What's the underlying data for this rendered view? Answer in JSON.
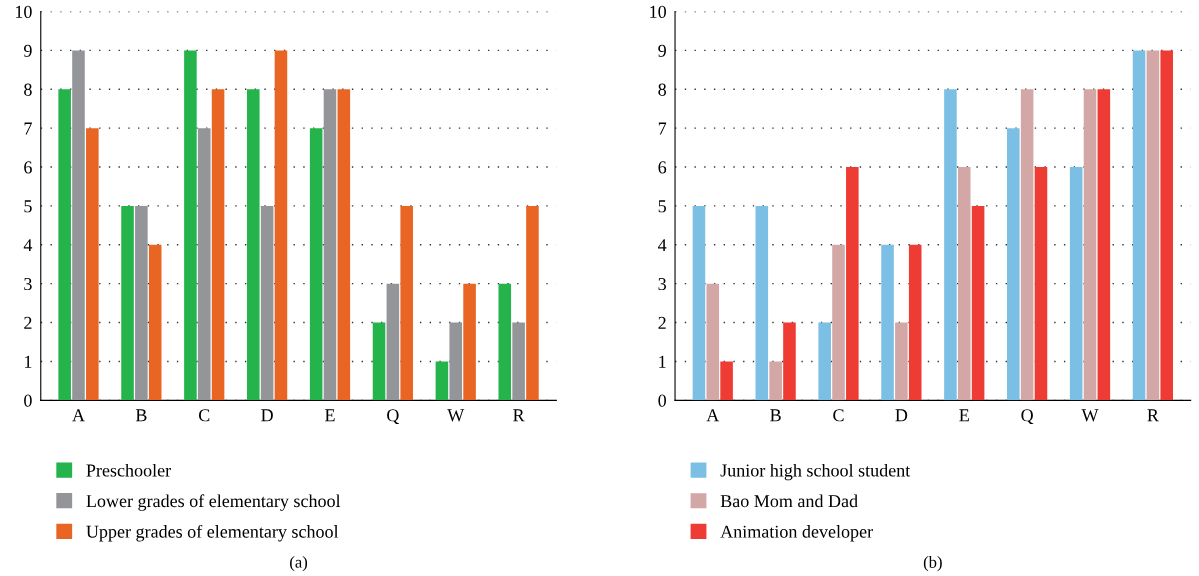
{
  "chart_data": [
    {
      "type": "bar",
      "categories": [
        "A",
        "B",
        "C",
        "D",
        "E",
        "Q",
        "W",
        "R"
      ],
      "ylim": [
        0,
        10
      ],
      "yticks": [
        0,
        1,
        2,
        3,
        4,
        5,
        6,
        7,
        8,
        9,
        10
      ],
      "grid": "y",
      "legend": "bottom left",
      "annotations": [
        "(a)"
      ],
      "series": [
        {
          "name": "Preschooler",
          "color": "#25b34b",
          "values": [
            8,
            5,
            9,
            8,
            7,
            2,
            1,
            3
          ]
        },
        {
          "name": "Lower grades of elementary school",
          "color": "#939598",
          "values": [
            9,
            5,
            7,
            5,
            8,
            3,
            2,
            2
          ]
        },
        {
          "name": "Upper grades of elementary school",
          "color": "#e96524",
          "values": [
            7,
            4,
            8,
            9,
            8,
            5,
            3,
            5
          ]
        }
      ]
    },
    {
      "type": "bar",
      "categories": [
        "A",
        "B",
        "C",
        "D",
        "E",
        "Q",
        "W",
        "R"
      ],
      "ylim": [
        0,
        10
      ],
      "yticks": [
        0,
        1,
        2,
        3,
        4,
        5,
        6,
        7,
        8,
        9,
        10
      ],
      "grid": "y",
      "legend": "bottom left",
      "annotations": [
        "(b)"
      ],
      "series": [
        {
          "name": "Junior high school student",
          "color": "#7bc0e4",
          "values": [
            5,
            5,
            2,
            4,
            8,
            7,
            6,
            9
          ]
        },
        {
          "name": "Bao Mom and Dad",
          "color": "#d4a7a7",
          "values": [
            3,
            1,
            4,
            2,
            6,
            8,
            8,
            9
          ]
        },
        {
          "name": "Animation developer",
          "color": "#ee3b33",
          "values": [
            1,
            2,
            6,
            4,
            5,
            6,
            8,
            9
          ]
        }
      ]
    }
  ]
}
